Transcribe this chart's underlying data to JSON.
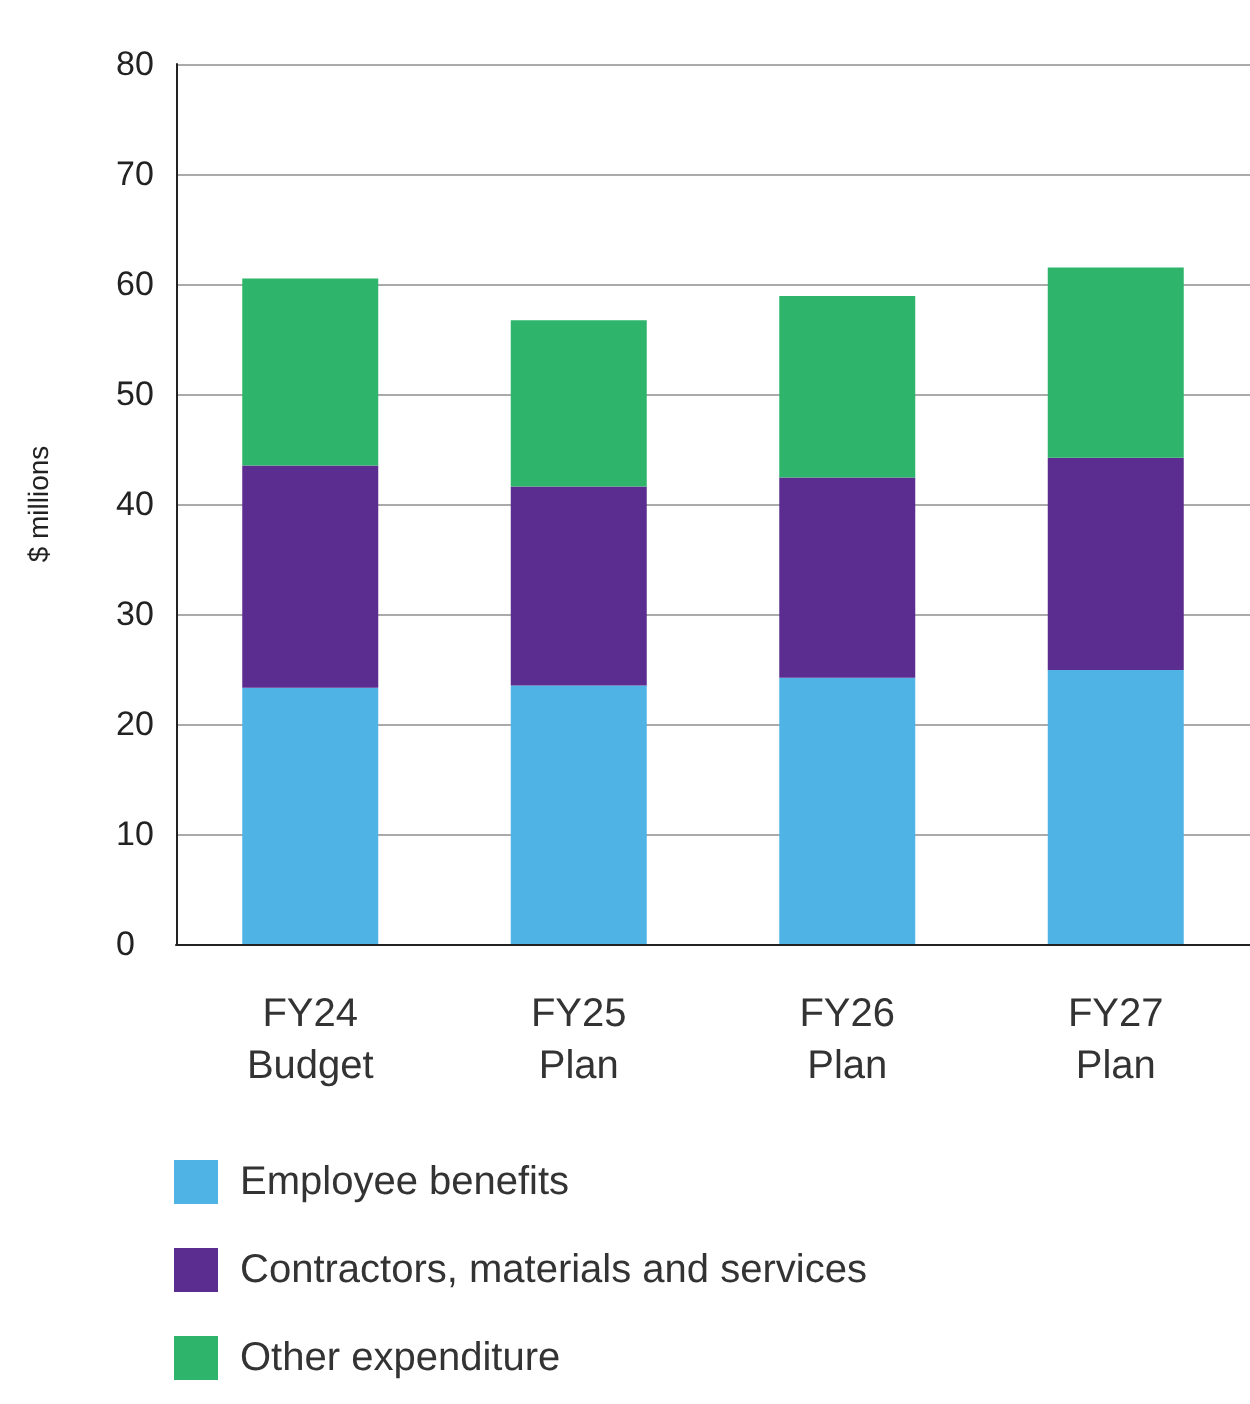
{
  "chart_data": {
    "type": "bar",
    "stacked": true,
    "ylabel": "$ millions",
    "categories": [
      "FY24 Budget",
      "FY25 Plan",
      "FY26 Plan",
      "FY27 Plan"
    ],
    "series": [
      {
        "name": "Employee benefits",
        "color": "#4fb3e6",
        "values": [
          23.3,
          23.5,
          24.2,
          24.9
        ]
      },
      {
        "name": "Contractors, materials and services",
        "color": "#5c2d91",
        "values": [
          20.2,
          18.1,
          18.2,
          19.3
        ]
      },
      {
        "name": "Other expenditure",
        "color": "#2fb56b",
        "values": [
          17.0,
          15.1,
          16.5,
          17.3
        ]
      }
    ],
    "ylim": [
      0,
      80
    ],
    "yticks": [
      0,
      10,
      20,
      30,
      40,
      50,
      60,
      70,
      80
    ],
    "grid": "y",
    "legend": "bottom"
  }
}
